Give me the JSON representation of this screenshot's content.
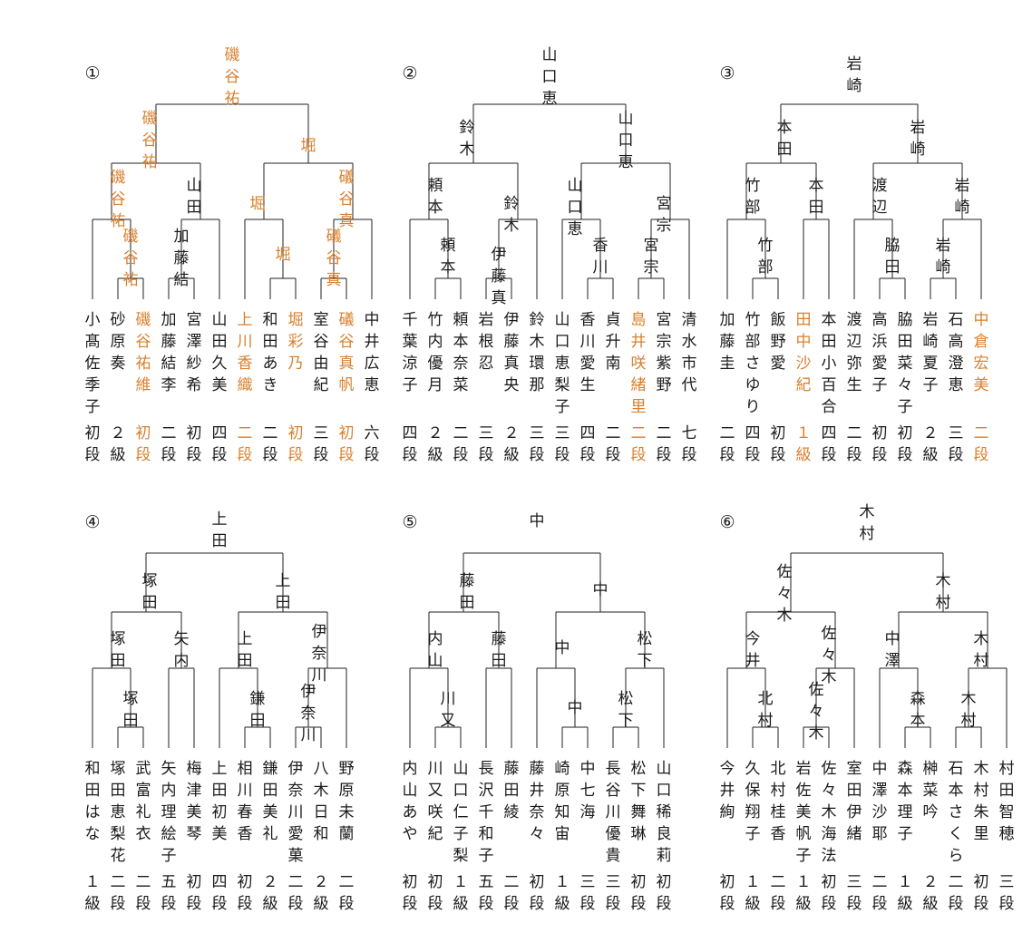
{
  "accent_color": "#d9802e",
  "text_color": "#1a1a1a",
  "brackets": [
    {
      "number": "①",
      "players": [
        {
          "name": "小髙佐季子",
          "rank": "初段",
          "highlight": false
        },
        {
          "name": "砂原奏",
          "rank": "２級",
          "highlight": false
        },
        {
          "name": "磯谷祐維",
          "rank": "初段",
          "highlight": true
        },
        {
          "name": "加藤結李",
          "rank": "二段",
          "highlight": false
        },
        {
          "name": "宮澤紗希",
          "rank": "初段",
          "highlight": false
        },
        {
          "name": "山田久美",
          "rank": "四段",
          "highlight": false
        },
        {
          "name": "上川香織",
          "rank": "二段",
          "highlight": true
        },
        {
          "name": "和田あき",
          "rank": "二段",
          "highlight": false
        },
        {
          "name": "堀彩乃",
          "rank": "初段",
          "highlight": true
        },
        {
          "name": "室谷由紀",
          "rank": "三段",
          "highlight": false
        },
        {
          "name": "礒谷真帆",
          "rank": "初段",
          "highlight": true
        },
        {
          "name": "中井広恵",
          "rank": "六段",
          "highlight": false
        }
      ],
      "winners": [
        {
          "id": "r1m1",
          "name": "磯谷祐",
          "highlight": true
        },
        {
          "id": "r1m2",
          "name": "加藤結",
          "highlight": false
        },
        {
          "id": "r1m3",
          "name": "堀",
          "highlight": true
        },
        {
          "id": "r1m4",
          "name": "礒谷真",
          "highlight": true
        },
        {
          "id": "r2m1",
          "name": "磯谷祐",
          "highlight": true
        },
        {
          "id": "r2m2",
          "name": "山田",
          "highlight": false
        },
        {
          "id": "r2m3",
          "name": "堀",
          "highlight": true
        },
        {
          "id": "r2m4",
          "name": "礒谷真",
          "highlight": true
        },
        {
          "id": "sf1",
          "name": "磯谷祐",
          "highlight": true
        },
        {
          "id": "sf2",
          "name": "堀",
          "highlight": true
        },
        {
          "id": "final",
          "name": "磯谷祐",
          "highlight": true
        }
      ]
    },
    {
      "number": "②",
      "players": [
        {
          "name": "千葉涼子",
          "rank": "四段",
          "highlight": false
        },
        {
          "name": "竹内優月",
          "rank": "２級",
          "highlight": false
        },
        {
          "name": "頼本奈菜",
          "rank": "二段",
          "highlight": false
        },
        {
          "name": "岩根忍",
          "rank": "三段",
          "highlight": false
        },
        {
          "name": "伊藤真央",
          "rank": "２級",
          "highlight": false
        },
        {
          "name": "鈴木環那",
          "rank": "三段",
          "highlight": false
        },
        {
          "name": "山口恵梨子",
          "rank": "三段",
          "highlight": false
        },
        {
          "name": "香川愛生",
          "rank": "四段",
          "highlight": false
        },
        {
          "name": "貞升南",
          "rank": "二段",
          "highlight": false
        },
        {
          "name": "島井咲緒里",
          "rank": "二段",
          "highlight": true
        },
        {
          "name": "宮宗紫野",
          "rank": "二段",
          "highlight": false
        },
        {
          "name": "清水市代",
          "rank": "七段",
          "highlight": false
        }
      ],
      "winners": [
        {
          "id": "r1m1",
          "name": "頼本",
          "highlight": false
        },
        {
          "id": "r1m2",
          "name": "伊藤真",
          "highlight": false
        },
        {
          "id": "r1m3",
          "name": "香川",
          "highlight": false
        },
        {
          "id": "r1m4",
          "name": "宮宗",
          "highlight": false
        },
        {
          "id": "r2m1",
          "name": "頼本",
          "highlight": false
        },
        {
          "id": "r2m2",
          "name": "鈴木",
          "highlight": false
        },
        {
          "id": "r2m3",
          "name": "山口恵",
          "highlight": false
        },
        {
          "id": "r2m4",
          "name": "宮宗",
          "highlight": false
        },
        {
          "id": "sf1",
          "name": "鈴木",
          "highlight": false
        },
        {
          "id": "sf2",
          "name": "山口恵",
          "highlight": false
        },
        {
          "id": "final",
          "name": "山口恵",
          "highlight": false
        }
      ]
    },
    {
      "number": "③",
      "players": [
        {
          "name": "加藤圭",
          "rank": "二段",
          "highlight": false
        },
        {
          "name": "竹部さゆり",
          "rank": "四段",
          "highlight": false
        },
        {
          "name": "飯野愛",
          "rank": "初段",
          "highlight": false
        },
        {
          "name": "田中沙紀",
          "rank": "１級",
          "highlight": true
        },
        {
          "name": "本田小百合",
          "rank": "四段",
          "highlight": false
        },
        {
          "name": "渡辺弥生",
          "rank": "二段",
          "highlight": false
        },
        {
          "name": "高浜愛子",
          "rank": "初段",
          "highlight": false
        },
        {
          "name": "脇田菜々子",
          "rank": "初段",
          "highlight": false
        },
        {
          "name": "岩崎夏子",
          "rank": "２級",
          "highlight": false
        },
        {
          "name": "石高澄恵",
          "rank": "三段",
          "highlight": false
        },
        {
          "name": "中倉宏美",
          "rank": "二段",
          "highlight": true
        }
      ],
      "winners": [
        {
          "id": "r1m1",
          "name": "竹部",
          "highlight": false
        },
        {
          "id": "r1m3",
          "name": "脇田",
          "highlight": false
        },
        {
          "id": "r1m4",
          "name": "岩崎",
          "highlight": false
        },
        {
          "id": "r2m1",
          "name": "竹部",
          "highlight": false
        },
        {
          "id": "r2m2",
          "name": "本田",
          "highlight": false
        },
        {
          "id": "r2m3",
          "name": "渡辺",
          "highlight": false
        },
        {
          "id": "r2m4",
          "name": "岩崎",
          "highlight": false
        },
        {
          "id": "sf1",
          "name": "本田",
          "highlight": false
        },
        {
          "id": "sf2",
          "name": "岩崎",
          "highlight": false
        },
        {
          "id": "final",
          "name": "岩崎",
          "highlight": false
        }
      ]
    },
    {
      "number": "④",
      "players": [
        {
          "name": "和田はな",
          "rank": "１級",
          "highlight": false
        },
        {
          "name": "塚田恵梨花",
          "rank": "二段",
          "highlight": false
        },
        {
          "name": "武富礼衣",
          "rank": "二段",
          "highlight": false
        },
        {
          "name": "矢内理絵子",
          "rank": "五段",
          "highlight": false
        },
        {
          "name": "梅津美琴",
          "rank": "初段",
          "highlight": false
        },
        {
          "name": "上田初美",
          "rank": "四段",
          "highlight": false
        },
        {
          "name": "相川春香",
          "rank": "初段",
          "highlight": false
        },
        {
          "name": "鎌田美礼",
          "rank": "２級",
          "highlight": false
        },
        {
          "name": "伊奈川愛菓",
          "rank": "二段",
          "highlight": false
        },
        {
          "name": "八木日和",
          "rank": "２級",
          "highlight": false
        },
        {
          "name": "野原未蘭",
          "rank": "二段",
          "highlight": false
        }
      ],
      "winners": [
        {
          "id": "r1m1",
          "name": "塚田",
          "highlight": false
        },
        {
          "id": "r1m3",
          "name": "鎌田",
          "highlight": false
        },
        {
          "id": "r1m4",
          "name": "伊奈川",
          "highlight": false
        },
        {
          "id": "r2m1",
          "name": "塚田",
          "highlight": false
        },
        {
          "id": "r2m2",
          "name": "矢内",
          "highlight": false
        },
        {
          "id": "r2m3",
          "name": "上田",
          "highlight": false
        },
        {
          "id": "r2m4",
          "name": "伊奈川",
          "highlight": false
        },
        {
          "id": "sf1",
          "name": "塚田",
          "highlight": false
        },
        {
          "id": "sf2",
          "name": "上田",
          "highlight": false
        },
        {
          "id": "final",
          "name": "上田",
          "highlight": false
        }
      ]
    },
    {
      "number": "⑤",
      "players": [
        {
          "name": "内山あや",
          "rank": "初段",
          "highlight": false
        },
        {
          "name": "川又咲紀",
          "rank": "初段",
          "highlight": false
        },
        {
          "name": "山口仁子梨",
          "rank": "１級",
          "highlight": false
        },
        {
          "name": "長沢千和子",
          "rank": "五段",
          "highlight": false
        },
        {
          "name": "藤田綾",
          "rank": "二段",
          "highlight": false
        },
        {
          "name": "藤井奈々",
          "rank": "初段",
          "highlight": false
        },
        {
          "name": "崎原知宙",
          "rank": "１級",
          "highlight": false
        },
        {
          "name": "中七海",
          "rank": "三段",
          "highlight": false
        },
        {
          "name": "長谷川優貴",
          "rank": "三段",
          "highlight": false
        },
        {
          "name": "松下舞琳",
          "rank": "初段",
          "highlight": false
        },
        {
          "name": "山口稀良莉",
          "rank": "初段",
          "highlight": false
        }
      ],
      "winners": [
        {
          "id": "r1m1",
          "name": "川又",
          "highlight": false
        },
        {
          "id": "r1m3",
          "name": "中",
          "highlight": false
        },
        {
          "id": "r1m4",
          "name": "松下",
          "highlight": false
        },
        {
          "id": "r2m1",
          "name": "内山",
          "highlight": false
        },
        {
          "id": "r2m2",
          "name": "藤田",
          "highlight": false
        },
        {
          "id": "r2m3",
          "name": "中",
          "highlight": false
        },
        {
          "id": "r2m4",
          "name": "松下",
          "highlight": false
        },
        {
          "id": "sf1",
          "name": "藤田",
          "highlight": false
        },
        {
          "id": "sf2",
          "name": "中",
          "highlight": false
        },
        {
          "id": "final",
          "name": "中",
          "highlight": false
        }
      ]
    },
    {
      "number": "⑥",
      "players": [
        {
          "name": "今井絢",
          "rank": "初段",
          "highlight": false
        },
        {
          "name": "久保翔子",
          "rank": "１級",
          "highlight": false
        },
        {
          "name": "北村桂香",
          "rank": "二段",
          "highlight": false
        },
        {
          "name": "岩佐美帆子",
          "rank": "１級",
          "highlight": false
        },
        {
          "name": "佐々木海法",
          "rank": "初段",
          "highlight": false
        },
        {
          "name": "室田伊緒",
          "rank": "三段",
          "highlight": false
        },
        {
          "name": "中澤沙耶",
          "rank": "二段",
          "highlight": false
        },
        {
          "name": "森本理子",
          "rank": "１級",
          "highlight": false
        },
        {
          "name": "榊菜吟",
          "rank": "２級",
          "highlight": false
        },
        {
          "name": "石本さくら",
          "rank": "二段",
          "highlight": false
        },
        {
          "name": "木村朱里",
          "rank": "初段",
          "highlight": false
        },
        {
          "name": "村田智穂",
          "rank": "三段",
          "highlight": false
        }
      ],
      "winners": [
        {
          "id": "r1m1",
          "name": "北村",
          "highlight": false
        },
        {
          "id": "r1m2",
          "name": "佐々木",
          "highlight": false
        },
        {
          "id": "r1m3",
          "name": "森本",
          "highlight": false
        },
        {
          "id": "r1m4",
          "name": "木村",
          "highlight": false
        },
        {
          "id": "r2m1",
          "name": "今井",
          "highlight": false
        },
        {
          "id": "r2m2",
          "name": "佐々木",
          "highlight": false
        },
        {
          "id": "r2m3",
          "name": "中澤",
          "highlight": false
        },
        {
          "id": "r2m4",
          "name": "木村",
          "highlight": false
        },
        {
          "id": "sf1",
          "name": "佐々木",
          "highlight": false
        },
        {
          "id": "sf2",
          "name": "木村",
          "highlight": false
        },
        {
          "id": "final",
          "name": "木村",
          "highlight": false
        }
      ]
    }
  ]
}
